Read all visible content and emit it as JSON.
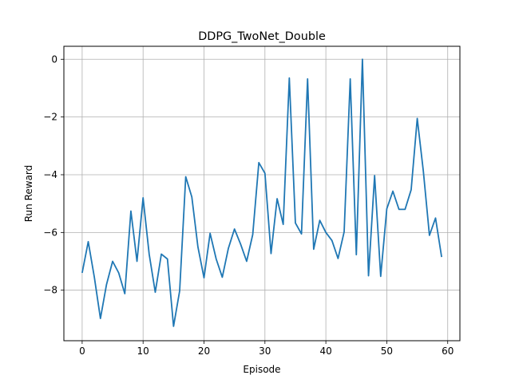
{
  "chart_data": {
    "type": "line",
    "title": "DDPG_TwoNet_Double",
    "xlabel": "Episode",
    "ylabel": "Run Reward",
    "xlim": [
      -3,
      62
    ],
    "ylim": [
      -9.75,
      0.45
    ],
    "xticks": [
      0,
      10,
      20,
      30,
      40,
      50,
      60
    ],
    "yticks": [
      0,
      -2,
      -4,
      -6,
      -8
    ],
    "ytick_labels": [
      "0",
      "−2",
      "−4",
      "−6",
      "−8"
    ],
    "grid": true,
    "line_color": "#1f77b4",
    "series": [
      {
        "x": [
          0,
          1,
          2,
          3,
          4,
          5,
          6,
          7,
          8,
          9,
          10,
          11,
          12,
          13,
          14,
          15,
          16,
          17,
          18,
          19,
          20,
          21,
          22,
          23,
          24,
          25,
          26,
          27,
          28,
          29,
          30,
          31,
          32,
          33,
          34,
          35,
          36,
          37,
          38,
          39,
          40,
          41,
          42,
          43,
          44,
          45,
          46,
          47,
          48,
          49,
          50,
          51,
          52,
          53,
          54,
          55,
          56,
          57,
          58,
          59
        ],
        "values": [
          -7.4,
          -6.32,
          -7.55,
          -8.98,
          -7.8,
          -7.0,
          -7.4,
          -8.12,
          -5.26,
          -7.0,
          -4.8,
          -6.75,
          -8.07,
          -6.75,
          -6.92,
          -9.25,
          -8.03,
          -4.07,
          -4.77,
          -6.5,
          -7.57,
          -6.03,
          -6.92,
          -7.55,
          -6.55,
          -5.88,
          -6.4,
          -7.0,
          -6.07,
          -3.58,
          -3.95,
          -6.73,
          -4.83,
          -5.72,
          -0.65,
          -5.67,
          -6.05,
          -0.68,
          -6.58,
          -5.58,
          -6.0,
          -6.28,
          -6.9,
          -5.98,
          -0.68,
          -6.77,
          0.0,
          -7.5,
          -4.03,
          -7.52,
          -5.18,
          -4.57,
          -5.2,
          -5.2,
          -4.52,
          -2.05,
          -3.88,
          -6.1,
          -5.5,
          -6.85
        ]
      }
    ]
  }
}
